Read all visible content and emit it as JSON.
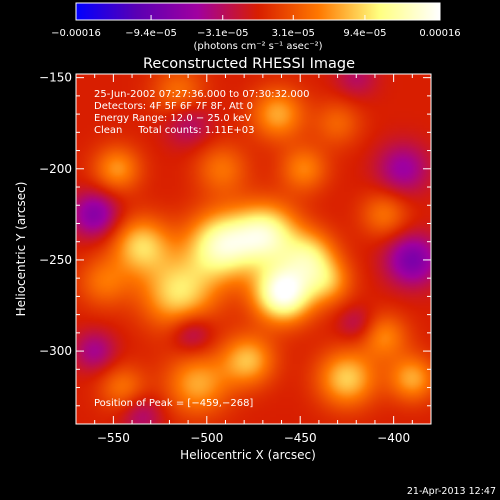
{
  "chart_data": {
    "type": "heatmap",
    "title": "Reconstructed RHESSI Image",
    "xlabel": "Heliocentric X (arcsec)",
    "ylabel": "Heliocentric Y (arcsec)",
    "xlim": [
      -570,
      -380
    ],
    "ylim": [
      -340,
      -148
    ],
    "x_ticks": [
      -550,
      -500,
      -450,
      -400
    ],
    "x_tick_labels": [
      "−550",
      "−500",
      "−450",
      "−400"
    ],
    "y_ticks": [
      -150,
      -200,
      -250,
      -300
    ],
    "y_tick_labels": [
      "−150",
      "−200",
      "−250",
      "−300"
    ],
    "colorbar": {
      "min": -0.00016,
      "max": 0.00016,
      "ticks": [
        -0.00016,
        -9.4e-05,
        -3.1e-05,
        3.1e-05,
        9.4e-05,
        0.00016
      ],
      "tick_labels": [
        "−0.00016",
        "−9.4e−05",
        "−3.1e−05",
        "3.1e−05",
        "9.4e−05",
        "0.00016"
      ],
      "unit_label": "(photons cm⁻² s⁻¹ asec⁻²)",
      "colors": [
        "#0000ff",
        "#5a00b4",
        "#a000a0",
        "#d81e00",
        "#ff7800",
        "#ffff80",
        "#ffffff"
      ]
    },
    "info_lines": [
      "25-Jun-2002 07:27:36.000 to 07:30:32.000",
      "Detectors: 4F 5F 6F 7F 8F, Att 0",
      "Energy Range: 12.0 − 25.0 keV",
      "Clean     Total counts: 1.11E+03"
    ],
    "peak_label": "Position of Peak = [−459,−268]",
    "peak": [
      -459,
      -268
    ],
    "sources": [
      {
        "x": -459,
        "y": -268,
        "amp": 1.0,
        "sigma": 11
      },
      {
        "x": -492,
        "y": -242,
        "amp": 0.8,
        "sigma": 13
      },
      {
        "x": -468,
        "y": -236,
        "amp": 0.75,
        "sigma": 12
      },
      {
        "x": -445,
        "y": -248,
        "amp": 0.55,
        "sigma": 10
      },
      {
        "x": -515,
        "y": -268,
        "amp": 0.6,
        "sigma": 14
      },
      {
        "x": -535,
        "y": -242,
        "amp": 0.55,
        "sigma": 11
      },
      {
        "x": -548,
        "y": -200,
        "amp": 0.4,
        "sigma": 9
      },
      {
        "x": -515,
        "y": -158,
        "amp": 0.3,
        "sigma": 10
      },
      {
        "x": -462,
        "y": -170,
        "amp": 0.45,
        "sigma": 10
      },
      {
        "x": -448,
        "y": -200,
        "amp": 0.35,
        "sigma": 9
      },
      {
        "x": -435,
        "y": -262,
        "amp": 0.4,
        "sigma": 9
      },
      {
        "x": -405,
        "y": -292,
        "amp": 0.35,
        "sigma": 9
      },
      {
        "x": -405,
        "y": -225,
        "amp": 0.3,
        "sigma": 9
      },
      {
        "x": -425,
        "y": -315,
        "amp": 0.55,
        "sigma": 11
      },
      {
        "x": -390,
        "y": -315,
        "amp": 0.45,
        "sigma": 9
      },
      {
        "x": -505,
        "y": -318,
        "amp": 0.45,
        "sigma": 12
      },
      {
        "x": -478,
        "y": -305,
        "amp": 0.5,
        "sigma": 10
      },
      {
        "x": -545,
        "y": -320,
        "amp": 0.3,
        "sigma": 9
      },
      {
        "x": -555,
        "y": -262,
        "amp": 0.3,
        "sigma": 10
      },
      {
        "x": -492,
        "y": -200,
        "amp": 0.3,
        "sigma": 10
      },
      {
        "x": -430,
        "y": -175,
        "amp": 0.25,
        "sigma": 9
      },
      {
        "x": -560,
        "y": -225,
        "amp": -0.45,
        "sigma": 9
      },
      {
        "x": -390,
        "y": -250,
        "amp": -0.5,
        "sigma": 10
      },
      {
        "x": -395,
        "y": -200,
        "amp": -0.35,
        "sigma": 10
      },
      {
        "x": -508,
        "y": -290,
        "amp": -0.3,
        "sigma": 8
      },
      {
        "x": -510,
        "y": -175,
        "amp": -0.25,
        "sigma": 9
      },
      {
        "x": -560,
        "y": -300,
        "amp": -0.3,
        "sigma": 8
      },
      {
        "x": -535,
        "y": -335,
        "amp": -0.25,
        "sigma": 8
      },
      {
        "x": -420,
        "y": -150,
        "amp": -0.2,
        "sigma": 8
      },
      {
        "x": -420,
        "y": -285,
        "amp": -0.2,
        "sigma": 7
      }
    ]
  },
  "footer": {
    "timestamp": "21-Apr-2013 12:47"
  }
}
